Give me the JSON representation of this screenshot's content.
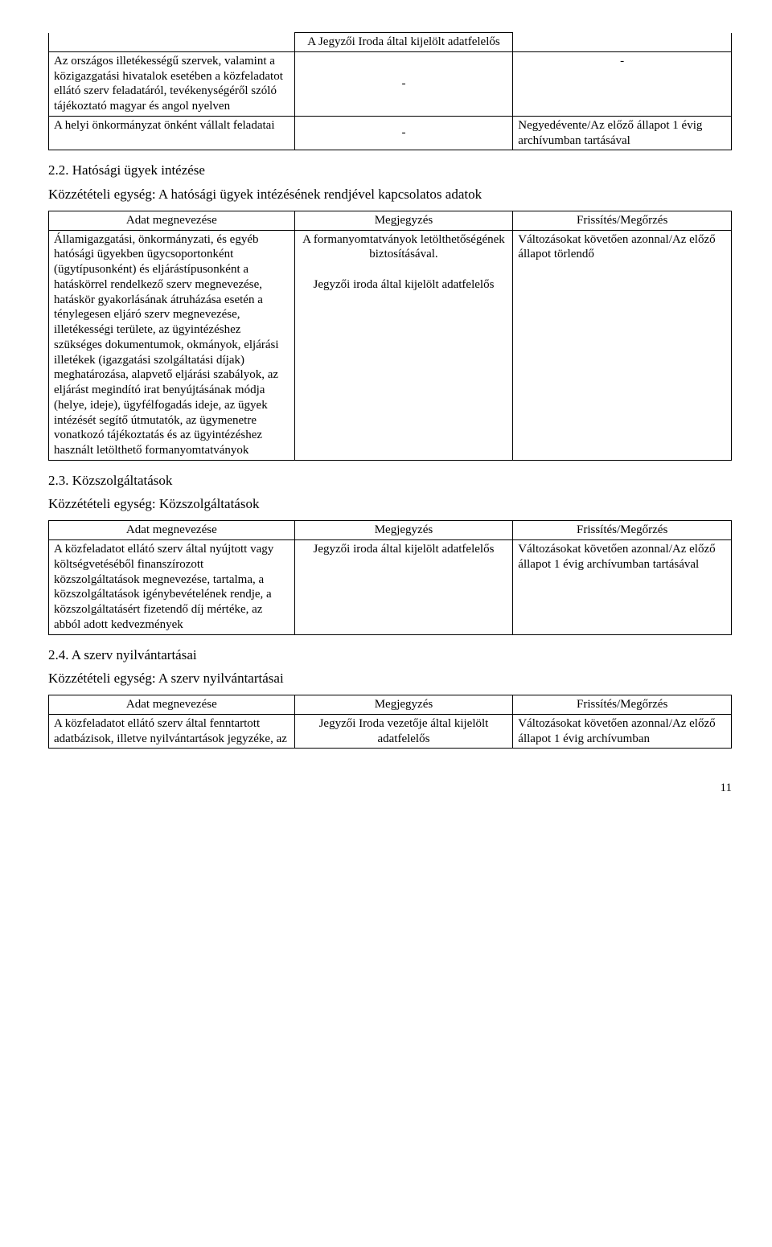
{
  "top_table": {
    "header_cell": "A Jegyzői Iroda által kijelölt adatfelelős",
    "rows": [
      {
        "c1": "Az országos illetékességű szervek, valamint a közigazgatási hivatalok esetében a közfeladatot ellátó szerv feladatáról, tevékenységéről szóló tájékoztató magyar és angol nyelven",
        "c2": "-",
        "c3": "-"
      },
      {
        "c1": "A helyi önkormányzat önként vállalt feladatai",
        "c2": "-",
        "c3": "Negyedévente/Az előző állapot 1 évig archívumban tartásával"
      }
    ]
  },
  "sec22": {
    "heading": "2.2. Hatósági ügyek intézése",
    "unit": "Közzétételi egység: A hatósági ügyek intézésének rendjével kapcsolatos adatok",
    "headers": [
      "Adat megnevezése",
      "Megjegyzés",
      "Frissítés/Megőrzés"
    ],
    "row": {
      "c1": "Államigazgatási, önkormányzati, és egyéb hatósági ügyekben ügycsoportonként (ügytípusonként) és eljárástípusonként a hatáskörrel rendelkező szerv megnevezése, hatáskör gyakorlásának átruházása esetén a ténylegesen eljáró szerv megnevezése, illetékességi területe, az ügyintézéshez szükséges dokumentumok, okmányok, eljárási illetékek (igazgatási szolgáltatási díjak) meghatározása, alapvető eljárási szabályok, az eljárást megindító irat benyújtásának módja (helye, ideje), ügyfélfogadás ideje, az ügyek intézését segítő útmutatók, az ügymenetre vonatkozó tájékoztatás és az ügyintézéshez használt letölthető formanyomtatványok",
      "c2a": "A formanyomtatványok letölthetőségének biztosításával.",
      "c2b": "Jegyzői iroda által kijelölt adatfelelős",
      "c3": "Változásokat követően azonnal/Az előző állapot törlendő"
    }
  },
  "sec23": {
    "heading": "2.3. Közszolgáltatások",
    "unit": "Közzétételi egység: Közszolgáltatások",
    "headers": [
      "Adat megnevezése",
      "Megjegyzés",
      "Frissítés/Megőrzés"
    ],
    "row": {
      "c1": "A közfeladatot ellátó szerv által nyújtott vagy költségvetéséből finanszírozott közszolgáltatások megnevezése, tartalma, a közszolgáltatások igénybevételének rendje, a közszolgáltatásért fizetendő díj mértéke, az abból adott kedvezmények",
      "c2": "Jegyzői iroda által kijelölt adatfelelős",
      "c3": "Változásokat követően azonnal/Az előző állapot 1 évig archívumban tartásával"
    }
  },
  "sec24": {
    "heading": "2.4. A szerv nyilvántartásai",
    "unit": "Közzétételi egység: A szerv nyilvántartásai",
    "headers": [
      "Adat megnevezése",
      "Megjegyzés",
      "Frissítés/Megőrzés"
    ],
    "row": {
      "c1": "A közfeladatot ellátó szerv által fenntartott adatbázisok, illetve nyilvántartások jegyzéke, az",
      "c2": "Jegyzői Iroda vezetője által kijelölt adatfelelős",
      "c3": "Változásokat követően azonnal/Az előző állapot 1 évig archívumban"
    }
  },
  "page_number": "11"
}
